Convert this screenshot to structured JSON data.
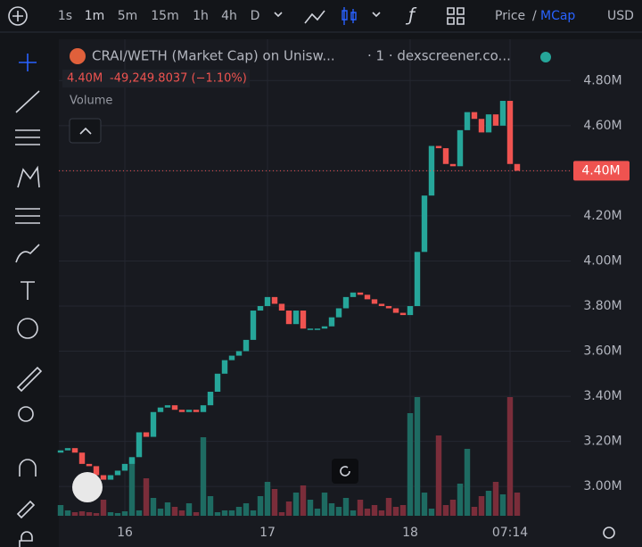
{
  "toolbar": {
    "intervals": [
      "1s",
      "1m",
      "5m",
      "15m",
      "1h",
      "4h",
      "D"
    ],
    "price": "Price",
    "separator": "/",
    "mcap": "MCap",
    "currency": "USD"
  },
  "chart_data": {
    "type": "candlestick",
    "title": "CRAI/WETH (Market Cap) on Unisw...",
    "source": "· 1 · dexscreener.co...",
    "change": "-49,249.8037 (−1.10%)",
    "volume_label": "Volume",
    "last_price": {
      "value": 4400000,
      "label": "4.40M"
    },
    "up_color": "#26a69a",
    "down_color": "#ef5350",
    "open": [
      3150000,
      3160000,
      3170000,
      3150000,
      3100000,
      3090000,
      3050000,
      3030000,
      3050000,
      3070000,
      3100000,
      3130000,
      3240000,
      3220000,
      3330000,
      3350000,
      3360000,
      3340000,
      3330000,
      3340000,
      3330000,
      3360000,
      3420000,
      3500000,
      3560000,
      3580000,
      3600000,
      3650000,
      3780000,
      3800000,
      3840000,
      3810000,
      3780000,
      3720000,
      3780000,
      3700000,
      3700000,
      3700000,
      3710000,
      3750000,
      3790000,
      3840000,
      3860000,
      3850000,
      3830000,
      3810000,
      3800000,
      3790000,
      3770000,
      3760000,
      3800000,
      4040000,
      4290000,
      4510000,
      4500000,
      4430000,
      4420000,
      4580000,
      4660000,
      4630000,
      4570000,
      4650000,
      4600000,
      4710000,
      4430000
    ],
    "close": [
      3160000,
      3170000,
      3150000,
      3100000,
      3090000,
      3050000,
      3030000,
      3050000,
      3070000,
      3100000,
      3130000,
      3240000,
      3220000,
      3330000,
      3350000,
      3360000,
      3340000,
      3330000,
      3340000,
      3330000,
      3360000,
      3420000,
      3500000,
      3560000,
      3580000,
      3600000,
      3650000,
      3780000,
      3800000,
      3840000,
      3810000,
      3780000,
      3720000,
      3780000,
      3700000,
      3700000,
      3700000,
      3710000,
      3750000,
      3790000,
      3840000,
      3860000,
      3850000,
      3830000,
      3810000,
      3800000,
      3790000,
      3770000,
      3760000,
      3800000,
      4040000,
      4290000,
      4510000,
      4500000,
      4430000,
      4420000,
      4580000,
      4660000,
      4630000,
      4570000,
      4650000,
      4600000,
      4710000,
      4430000,
      4400000
    ],
    "volume": [
      12,
      6,
      4,
      5,
      4,
      3,
      18,
      4,
      3,
      5,
      64,
      6,
      42,
      20,
      8,
      15,
      10,
      6,
      14,
      4,
      88,
      22,
      4,
      6,
      6,
      10,
      14,
      6,
      22,
      38,
      30,
      4,
      16,
      26,
      34,
      18,
      8,
      26,
      14,
      10,
      20,
      6,
      18,
      8,
      12,
      6,
      20,
      10,
      12,
      115,
      133,
      26,
      8,
      90,
      12,
      18,
      36,
      75,
      10,
      22,
      28,
      38,
      24,
      133,
      26
    ],
    "ylim": [
      2870000,
      4900000
    ],
    "yticks": [
      {
        "value": 3000000,
        "label": "3.00M"
      },
      {
        "value": 3200000,
        "label": "3.20M"
      },
      {
        "value": 3400000,
        "label": "3.40M"
      },
      {
        "value": 3600000,
        "label": "3.60M"
      },
      {
        "value": 3800000,
        "label": "3.80M"
      },
      {
        "value": 4000000,
        "label": "4.00M"
      },
      {
        "value": 4200000,
        "label": "4.20M"
      },
      {
        "value": 4400000,
        "label": "4.40M"
      },
      {
        "value": 4600000,
        "label": "4.60M"
      },
      {
        "value": 4800000,
        "label": "4.80M"
      }
    ],
    "xlim": [
      -0.25,
      71.5
    ],
    "xticks": [
      {
        "value": 9,
        "label": "16"
      },
      {
        "value": 29,
        "label": "17"
      },
      {
        "value": 49,
        "label": "18"
      },
      {
        "value": 63,
        "label": "07:14"
      }
    ],
    "grid": true
  }
}
